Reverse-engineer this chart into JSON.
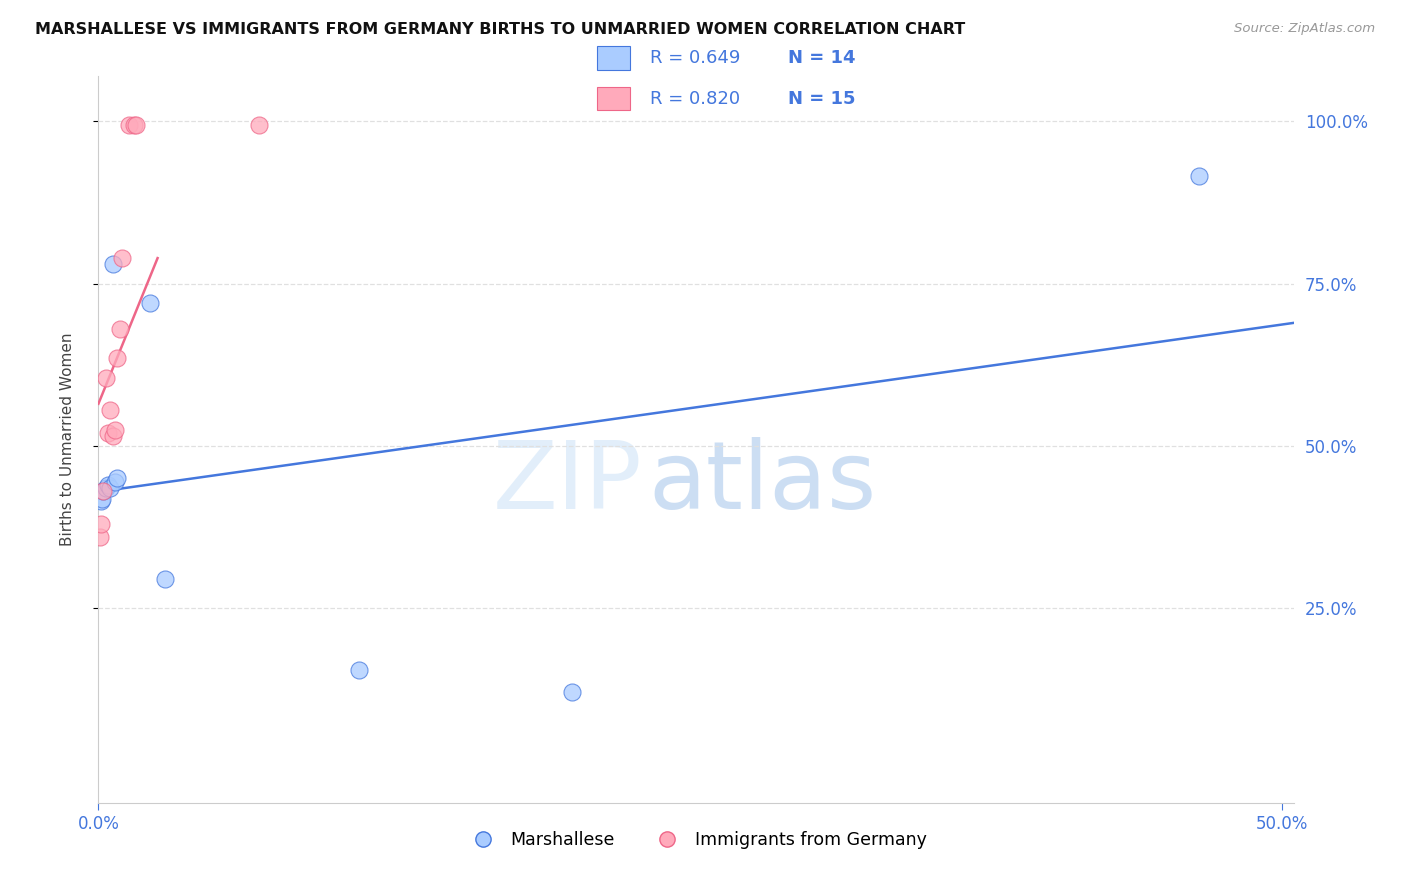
{
  "title": "MARSHALLESE VS IMMIGRANTS FROM GERMANY BIRTHS TO UNMARRIED WOMEN CORRELATION CHART",
  "source": "Source: ZipAtlas.com",
  "ylabel": "Births to Unmarried Women",
  "watermark_zip": "ZIP",
  "watermark_atlas": "atlas",
  "blue_label": "Marshallese",
  "pink_label": "Immigrants from Germany",
  "blue_R": 0.649,
  "blue_N": 14,
  "pink_R": 0.82,
  "pink_N": 15,
  "blue_scatter_color": "#aaccff",
  "pink_scatter_color": "#ffaabb",
  "blue_line_color": "#4477dd",
  "pink_line_color": "#ee6688",
  "legend_text_color": "#4477dd",
  "tick_color": "#4477dd",
  "xlim": [
    0.0,
    0.505
  ],
  "ylim": [
    -0.05,
    1.07
  ],
  "xtick_vals": [
    0.0,
    0.5
  ],
  "ytick_vals": [
    0.25,
    0.5,
    0.75,
    1.0
  ],
  "blue_x": [
    0.001,
    0.0015,
    0.002,
    0.003,
    0.004,
    0.005,
    0.006,
    0.007,
    0.008,
    0.022,
    0.028,
    0.11,
    0.2,
    0.465
  ],
  "blue_y": [
    0.415,
    0.418,
    0.43,
    0.435,
    0.44,
    0.435,
    0.78,
    0.445,
    0.45,
    0.72,
    0.295,
    0.155,
    0.12,
    0.915
  ],
  "pink_x": [
    0.0005,
    0.001,
    0.002,
    0.003,
    0.004,
    0.005,
    0.006,
    0.007,
    0.008,
    0.009,
    0.01,
    0.013,
    0.015,
    0.016,
    0.068
  ],
  "pink_y": [
    0.36,
    0.38,
    0.43,
    0.605,
    0.52,
    0.555,
    0.515,
    0.525,
    0.635,
    0.68,
    0.79,
    0.995,
    0.995,
    0.995,
    0.995
  ],
  "background": "#ffffff",
  "grid_color": "#e0e0e0",
  "spine_color": "#cccccc",
  "ylabel_color": "#444444",
  "title_color": "#111111",
  "source_color": "#999999"
}
